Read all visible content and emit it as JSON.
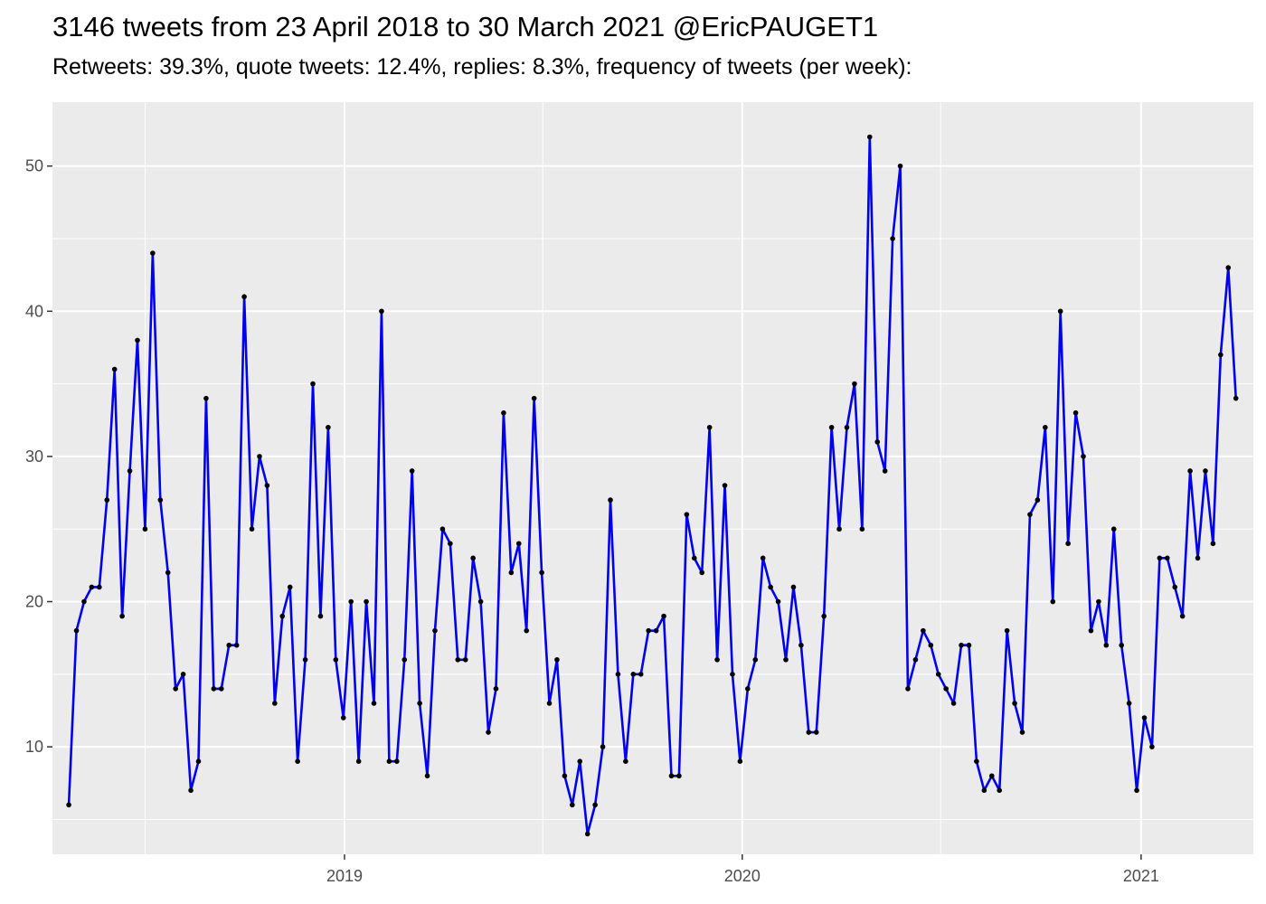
{
  "header": {
    "title": "3146 tweets from 23 April 2018 to 30 March 2021 @EricPAUGET1",
    "subtitle": "Retweets: 39.3%, quote tweets: 12.4%, replies: 8.3%, frequency of tweets (per week):"
  },
  "chart_data": {
    "type": "line",
    "title": "3146 tweets from 23 April 2018 to 30 March 2021 @EricPAUGET1",
    "subtitle": "Retweets: 39.3%, quote tweets: 12.4%, replies: 8.3%, frequency of tweets (per week):",
    "xlabel": "",
    "ylabel": "",
    "x_start": "2018-04-23",
    "x_interval": "1 week",
    "xlim": [
      "2018-04-08",
      "2021-04-14"
    ],
    "ylim": [
      2.6,
      54.4
    ],
    "x_ticks": [
      "2019",
      "2020",
      "2021"
    ],
    "y_ticks": [
      10,
      20,
      30,
      40,
      50
    ],
    "grid": true,
    "line_color": "#0000ee",
    "point_color": "#000000",
    "panel_background": "#ebebeb",
    "series": [
      {
        "values": [
          6,
          18,
          20,
          21,
          21,
          27,
          36,
          19,
          29,
          38,
          25,
          44,
          27,
          22,
          14,
          15,
          7,
          9,
          34,
          14,
          14,
          17,
          17,
          41,
          25,
          30,
          28,
          13,
          19,
          21,
          9,
          16,
          35,
          19,
          32,
          16,
          12,
          20,
          9,
          20,
          13,
          40,
          9,
          9,
          16,
          29,
          13,
          8,
          18,
          25,
          24,
          16,
          16,
          23,
          20,
          11,
          14,
          33,
          22,
          24,
          18,
          34,
          22,
          13,
          16,
          8,
          6,
          9,
          4,
          6,
          10,
          27,
          15,
          9,
          15,
          15,
          18,
          18,
          19,
          8,
          8,
          26,
          23,
          22,
          32,
          16,
          28,
          15,
          9,
          14,
          16,
          23,
          21,
          20,
          16,
          21,
          17,
          11,
          11,
          19,
          32,
          25,
          32,
          35,
          25,
          52,
          31,
          29,
          45,
          50,
          14,
          16,
          18,
          17,
          15,
          14,
          13,
          17,
          17,
          9,
          7,
          8,
          7,
          18,
          13,
          11,
          26,
          27,
          32,
          20,
          40,
          24,
          33,
          30,
          18,
          20,
          17,
          25,
          17,
          13,
          7,
          12,
          10,
          23,
          23,
          21,
          19,
          29,
          23,
          29,
          24,
          37,
          43,
          34
        ]
      }
    ]
  }
}
